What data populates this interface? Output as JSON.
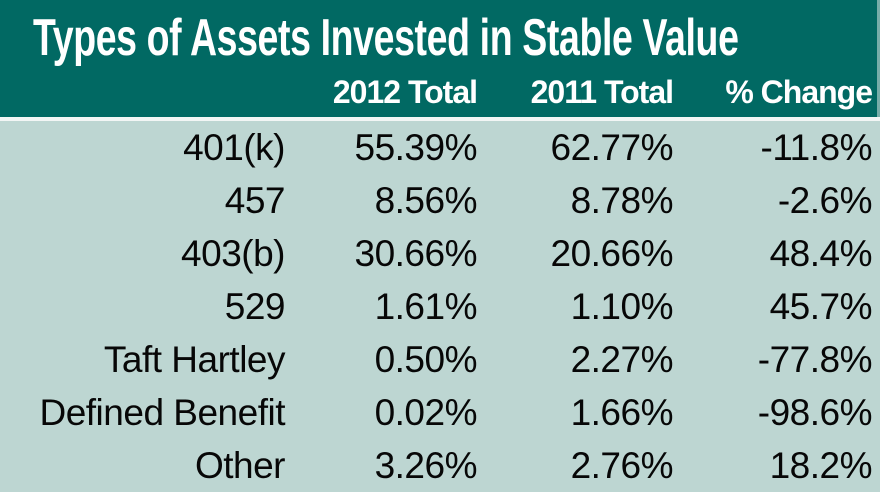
{
  "table": {
    "title": "Types of Assets Invested in Stable Value",
    "columns": [
      "",
      "2012 Total",
      "2011 Total",
      "% Change"
    ],
    "rows": [
      {
        "label": "401(k)",
        "total_2012": "55.39%",
        "total_2011": "62.77%",
        "pct_change": "-11.8%"
      },
      {
        "label": "457",
        "total_2012": "8.56%",
        "total_2011": "8.78%",
        "pct_change": "-2.6%"
      },
      {
        "label": "403(b)",
        "total_2012": "30.66%",
        "total_2011": "20.66%",
        "pct_change": "48.4%"
      },
      {
        "label": "529",
        "total_2012": "1.61%",
        "total_2011": "1.10%",
        "pct_change": "45.7%"
      },
      {
        "label": "Taft Hartley",
        "total_2012": "0.50%",
        "total_2011": "2.27%",
        "pct_change": "-77.8%"
      },
      {
        "label": "Defined Benefit",
        "total_2012": "0.02%",
        "total_2011": "1.66%",
        "pct_change": "-98.6%"
      },
      {
        "label": "Other",
        "total_2012": "3.26%",
        "total_2011": "2.76%",
        "pct_change": "18.2%"
      }
    ]
  },
  "colors": {
    "header_bg": "#016963",
    "header_text": "#ffffff",
    "body_bg": "#bdd6d2",
    "separator": "#f2f6f5",
    "body_text": "#070707"
  },
  "chart_data": {
    "type": "table",
    "title": "Types of Assets Invested in Stable Value",
    "categories": [
      "401(k)",
      "457",
      "403(b)",
      "529",
      "Taft Hartley",
      "Defined Benefit",
      "Other"
    ],
    "series": [
      {
        "name": "2012 Total",
        "values": [
          55.39,
          8.56,
          30.66,
          1.61,
          0.5,
          0.02,
          3.26
        ]
      },
      {
        "name": "2011 Total",
        "values": [
          62.77,
          8.78,
          20.66,
          1.1,
          2.27,
          1.66,
          2.76
        ]
      },
      {
        "name": "% Change",
        "values": [
          -11.8,
          -2.6,
          48.4,
          45.7,
          -77.8,
          -98.6,
          18.2
        ]
      }
    ],
    "value_unit": "%",
    "layout": "header-teal, body-light-teal, all columns right-aligned"
  }
}
